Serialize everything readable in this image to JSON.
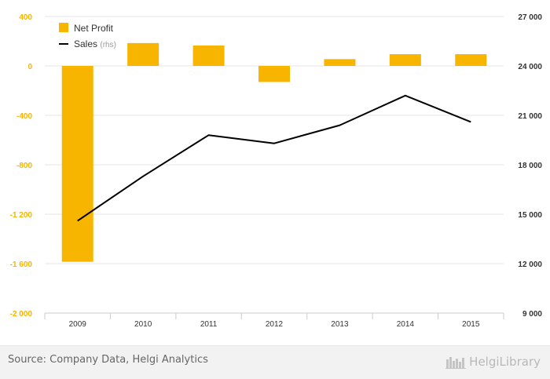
{
  "chart_data": {
    "type": "bar",
    "categories": [
      "2009",
      "2010",
      "2011",
      "2012",
      "2013",
      "2014",
      "2015"
    ],
    "series": [
      {
        "name": "Net Profit",
        "type": "bar",
        "axis": "left",
        "color": "#f7b500",
        "values": [
          -1585,
          185,
          165,
          -130,
          55,
          95,
          95
        ]
      },
      {
        "name": "Sales",
        "name_suffix": "(rhs)",
        "type": "line",
        "axis": "right",
        "color": "#000000",
        "values": [
          14600,
          17300,
          19800,
          19300,
          20400,
          22200,
          20600
        ]
      }
    ],
    "left_axis": {
      "min": -2000,
      "max": 400,
      "ticks": [
        "400",
        "0",
        "-400",
        "-800",
        "-1 200",
        "-1 600",
        "-2 000"
      ],
      "tick_color": "#f7b500"
    },
    "right_axis": {
      "min": 9000,
      "max": 27000,
      "ticks": [
        "27 000",
        "24 000",
        "21 000",
        "18 000",
        "15 000",
        "12 000",
        "9 000"
      ],
      "tick_color": "#333333"
    },
    "grid": true,
    "legend_position": "top-left"
  },
  "footer": {
    "source": "Source: Company Data, Helgi Analytics",
    "brand": "HelgiLibrary",
    "brand_icon": "library-logo-icon"
  }
}
